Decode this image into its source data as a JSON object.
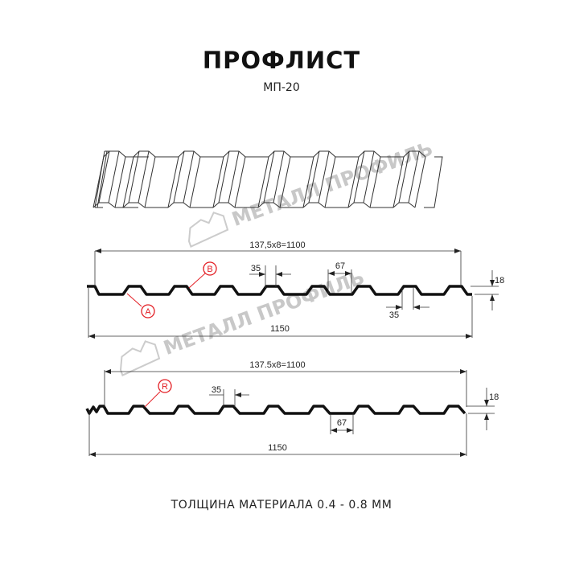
{
  "title": "ПРОФЛИСТ",
  "subtitle": "МП-20",
  "watermark": "МЕТАЛЛ ПРОФИЛЬ",
  "profile_1": {
    "top_dimension": "137,5x8=1100",
    "bottom_dimension": "1150",
    "rib_top_width": "35",
    "rib_top_width_2": "35",
    "pitch_bottom": "67",
    "height": "18",
    "marker_a": "A",
    "marker_b": "B"
  },
  "profile_2": {
    "top_dimension": "137.5x8=1100",
    "bottom_dimension": "1150",
    "rib_top_width": "35",
    "pitch_bottom": "67",
    "height": "18",
    "marker_r": "R"
  },
  "footer": "ТОЛЩИНА МАТЕРИАЛА 0.4 - 0.8 ММ",
  "colors": {
    "line": "#111111",
    "marker": "#e31e24",
    "watermark": "#c8c8c8"
  }
}
